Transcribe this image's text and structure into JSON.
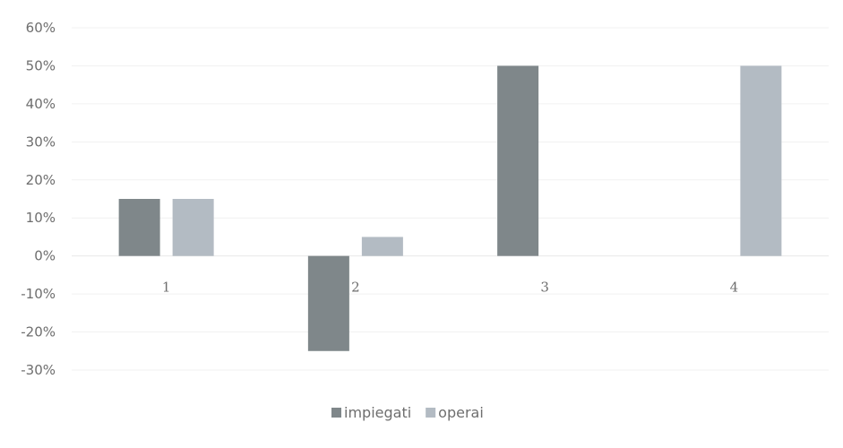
{
  "chart_data": {
    "type": "bar",
    "categories": [
      "1",
      "2",
      "3",
      "4"
    ],
    "series": [
      {
        "name": "impiegati",
        "values": [
          15,
          -25,
          50,
          0
        ],
        "color": "#7f878a"
      },
      {
        "name": "operai",
        "values": [
          15,
          5,
          0,
          50
        ],
        "color": "#b3bbc3"
      }
    ],
    "ylim": [
      -30,
      60
    ],
    "yticks": [
      60,
      50,
      40,
      30,
      20,
      10,
      0,
      -10,
      -20,
      -30
    ],
    "ytick_labels": [
      "60%",
      "50%",
      "40%",
      "30%",
      "20%",
      "10%",
      "0%",
      "-10%",
      "-20%",
      "-30%"
    ],
    "title": "",
    "xlabel": "",
    "ylabel": "",
    "grid": true,
    "legend_position": "bottom"
  }
}
